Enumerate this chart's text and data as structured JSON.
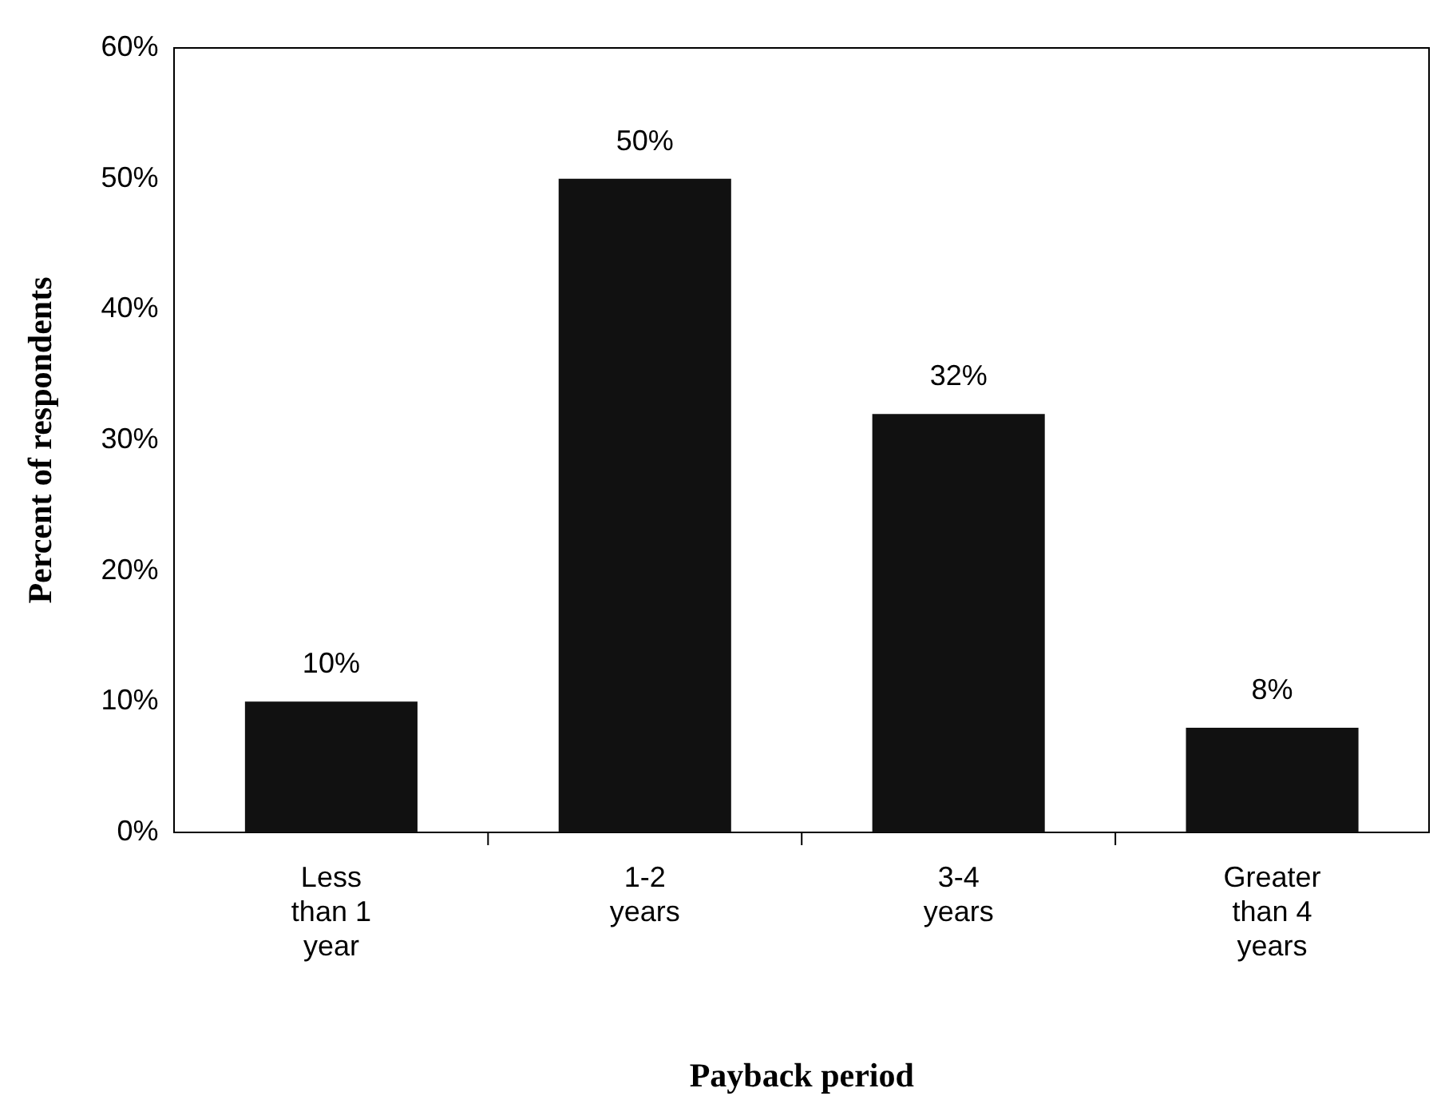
{
  "chart_data": {
    "type": "bar",
    "xlabel": "Payback period",
    "ylabel": "Percent of respondents",
    "categories": [
      "Less than 1 year",
      "1-2 years",
      "3-4 years",
      "Greater than 4 years"
    ],
    "values": [
      10,
      50,
      32,
      8
    ],
    "color": "#111111",
    "ylim": [
      0,
      60
    ],
    "yticks": [
      {
        "value": 0,
        "label": "0%"
      },
      {
        "value": 10,
        "label": "10%"
      },
      {
        "value": 20,
        "label": "20%"
      },
      {
        "value": 30,
        "label": "30%"
      },
      {
        "value": 40,
        "label": "40%"
      },
      {
        "value": 50,
        "label": "50%"
      },
      {
        "value": 60,
        "label": "60%"
      }
    ],
    "value_labels": [
      "10%",
      "50%",
      "32%",
      "8%"
    ],
    "grid": false,
    "legend": false
  }
}
